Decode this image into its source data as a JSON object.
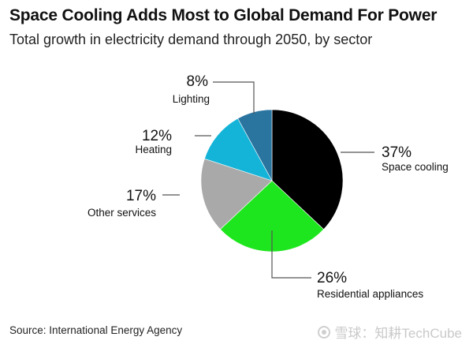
{
  "header": {
    "title": "Space Cooling Adds Most to Global Demand For Power",
    "subtitle": "Total growth in electricity demand through 2050, by sector"
  },
  "footer": {
    "source": "Source: International Energy Agency",
    "watermark": "雪球：知耕TechCube"
  },
  "chart_data": {
    "type": "pie",
    "title": "Space Cooling Adds Most to Global Demand For Power",
    "subtitle": "Total growth in electricity demand through 2050, by sector",
    "start": "12 o'clock, clockwise",
    "slices": [
      {
        "label": "Space cooling",
        "value": 37,
        "value_label": "37%",
        "color": "#000000"
      },
      {
        "label": "Residential appliances",
        "value": 26,
        "value_label": "26%",
        "color": "#1ee61e"
      },
      {
        "label": "Other services",
        "value": 17,
        "value_label": "17%",
        "color": "#a9a9a9"
      },
      {
        "label": "Heating",
        "value": 12,
        "value_label": "12%",
        "color": "#14b4d8"
      },
      {
        "label": "Lighting",
        "value": 8,
        "value_label": "8%",
        "color": "#2a74a0"
      }
    ]
  }
}
